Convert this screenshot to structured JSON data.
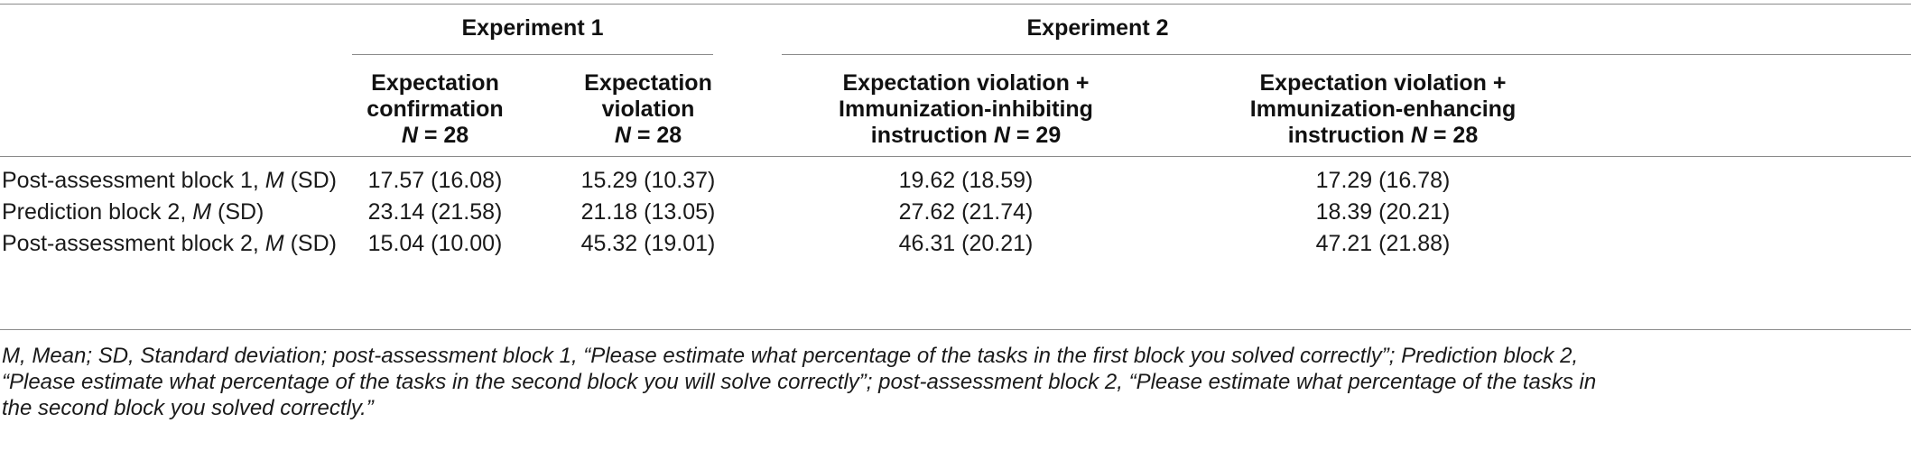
{
  "table": {
    "groups": [
      {
        "label": "Experiment 1"
      },
      {
        "label": "Experiment 2"
      }
    ],
    "columns": [
      {
        "line1": "Expectation",
        "line2": "confirmation",
        "n_label": "N",
        "n_rest": " = 28"
      },
      {
        "line1": "Expectation",
        "line2": "violation",
        "n_label": "N",
        "n_rest": " = 28"
      },
      {
        "line1": "Expectation violation +",
        "line2": "Immunization-inhibiting",
        "line3": "instruction ",
        "n_label": "N",
        "n_rest": " = 29"
      },
      {
        "line1": "Expectation violation +",
        "line2": "Immunization-enhancing",
        "line3": "instruction ",
        "n_label": "N",
        "n_rest": " = 28"
      }
    ],
    "rows": [
      {
        "pre": "Post-assessment block 1, ",
        "m": "M",
        "post": " (SD)",
        "values": [
          "17.57 (16.08)",
          "15.29 (10.37)",
          "19.62 (18.59)",
          "17.29 (16.78)"
        ]
      },
      {
        "pre": "Prediction block 2, ",
        "m": "M",
        "post": " (SD)",
        "values": [
          "23.14 (21.58)",
          "21.18 (13.05)",
          "27.62 (21.74)",
          "18.39 (20.21)"
        ]
      },
      {
        "pre": "Post-assessment block 2, ",
        "m": "M",
        "post": " (SD)",
        "values": [
          "15.04 (10.00)",
          "45.32 (19.01)",
          "46.31 (20.21)",
          "47.21 (21.88)"
        ]
      }
    ]
  },
  "note": {
    "line1": "M, Mean; SD, Standard deviation; post-assessment block 1, “Please estimate what percentage of the tasks in the first block you solved correctly”; Prediction block 2,",
    "line2": "“Please estimate what percentage of the tasks in the second block you will solve correctly”; post-assessment block 2, “Please estimate what percentage of the tasks in",
    "line3": "the second block you solved correctly.”"
  }
}
